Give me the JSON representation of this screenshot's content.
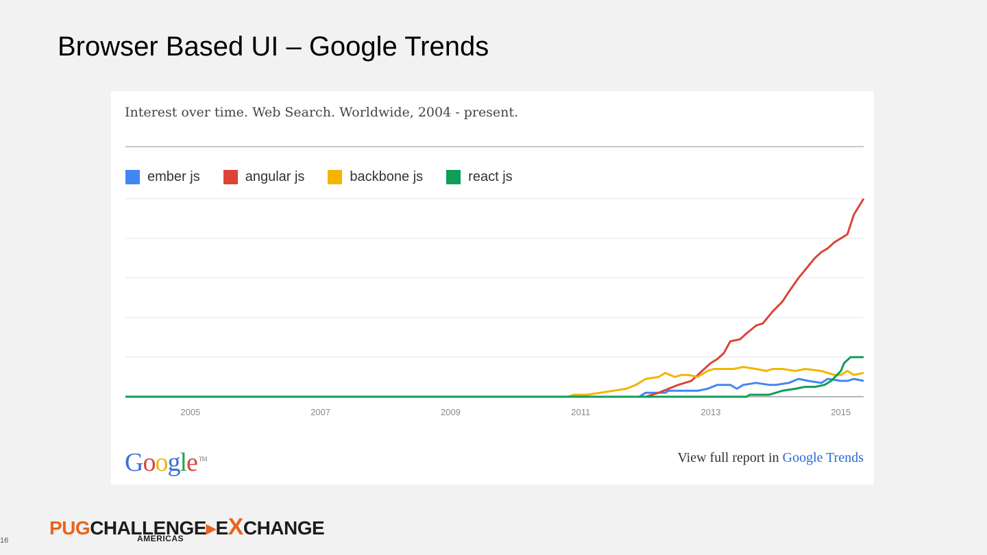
{
  "slide": {
    "title": "Browser Based UI – Google Trends",
    "number": "16"
  },
  "card": {
    "heading": "Interest over time. Web Search. Worldwide, 2004 - present.",
    "logo_g1": "G",
    "logo_o1": "o",
    "logo_o2": "o",
    "logo_g2": "g",
    "logo_l": "l",
    "logo_e": "e",
    "logo_tm": "TM",
    "report_prefix": "View full report in ",
    "report_link": "Google Trends"
  },
  "footer": {
    "brand_pug": "PUG",
    "brand_challenge": "CHALLENGE",
    "brand_arrow": "▸",
    "brand_e": "E",
    "brand_x": "X",
    "brand_change": "CHANGE",
    "brand_sub": "AMERICAS"
  },
  "colors": {
    "ember": "#4285f4",
    "angular": "#db4437",
    "backbone": "#f4b400",
    "react": "#0f9d58"
  },
  "chart_data": {
    "type": "line",
    "title": "Interest over time. Web Search. Worldwide, 2004 - present.",
    "x_tick_labels": [
      "2005",
      "2007",
      "2009",
      "2011",
      "2013",
      "2015"
    ],
    "x_ticks": [
      2005,
      2007,
      2009,
      2011,
      2013,
      2015
    ],
    "xlim": [
      2004.0,
      2015.35
    ],
    "ylim": [
      0,
      100
    ],
    "grid": true,
    "legend_position": "top-left",
    "series": [
      {
        "name": "ember js",
        "color": "#4285f4",
        "x": [
          2004.0,
          2011.9,
          2012.0,
          2012.3,
          2012.35,
          2012.5,
          2012.8,
          2012.95,
          2013.1,
          2013.3,
          2013.4,
          2013.5,
          2013.7,
          2013.9,
          2014.0,
          2014.2,
          2014.35,
          2014.5,
          2014.7,
          2014.8,
          2015.0,
          2015.1,
          2015.2,
          2015.35
        ],
        "y": [
          0,
          0,
          2,
          2,
          3,
          3,
          3,
          4,
          6,
          6,
          4,
          6,
          7,
          6,
          6,
          7,
          9,
          8,
          7,
          9,
          8,
          8,
          9,
          8
        ]
      },
      {
        "name": "angular js",
        "color": "#db4437",
        "x": [
          2004.0,
          2012.0,
          2012.2,
          2012.35,
          2012.5,
          2012.7,
          2012.9,
          2013.0,
          2013.1,
          2013.2,
          2013.3,
          2013.45,
          2013.55,
          2013.7,
          2013.8,
          2013.95,
          2014.1,
          2014.2,
          2014.35,
          2014.45,
          2014.6,
          2014.7,
          2014.8,
          2014.9,
          2015.0,
          2015.1,
          2015.2,
          2015.35
        ],
        "y": [
          0,
          0,
          2,
          4,
          6,
          8,
          14,
          17,
          19,
          22,
          28,
          29,
          32,
          36,
          37,
          43,
          48,
          53,
          60,
          64,
          70,
          73,
          75,
          78,
          80,
          82,
          92,
          100
        ]
      },
      {
        "name": "backbone js",
        "color": "#f4b400",
        "x": [
          2004.0,
          2010.8,
          2010.9,
          2011.1,
          2011.3,
          2011.5,
          2011.7,
          2011.85,
          2012.0,
          2012.2,
          2012.3,
          2012.45,
          2012.55,
          2012.65,
          2012.8,
          2012.95,
          2013.05,
          2013.2,
          2013.35,
          2013.5,
          2013.7,
          2013.85,
          2013.95,
          2014.1,
          2014.3,
          2014.45,
          2014.7,
          2014.9,
          2015.0,
          2015.1,
          2015.2,
          2015.35
        ],
        "y": [
          0,
          0,
          1,
          1,
          2,
          3,
          4,
          6,
          9,
          10,
          12,
          10,
          11,
          11,
          10,
          13,
          14,
          14,
          14,
          15,
          14,
          13,
          14,
          14,
          13,
          14,
          13,
          11,
          11,
          13,
          11,
          12
        ]
      },
      {
        "name": "react js",
        "color": "#0f9d58",
        "x": [
          2004.0,
          2013.55,
          2013.6,
          2013.9,
          2014.0,
          2014.1,
          2014.3,
          2014.45,
          2014.6,
          2014.75,
          2014.85,
          2015.0,
          2015.05,
          2015.15,
          2015.35
        ],
        "y": [
          0,
          0,
          1,
          1,
          2,
          3,
          4,
          5,
          5,
          6,
          8,
          13,
          17,
          20,
          20
        ]
      }
    ]
  }
}
